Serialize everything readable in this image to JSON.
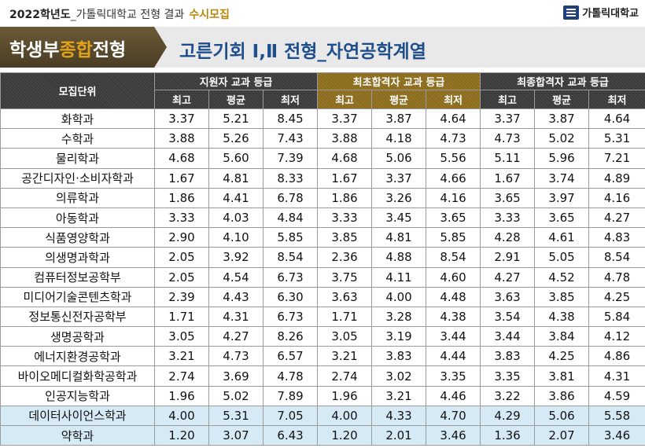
{
  "header": {
    "year": "2022학년도",
    "separator": "_",
    "description": "가톨릭대학교 전형 결과",
    "tag": "수시모집",
    "logo_text": "가톨릭대학교"
  },
  "banner": {
    "left_pre": "학생부",
    "left_highlight": "종합",
    "left_post": "전형",
    "right_title": "고른기회 Ⅰ,Ⅱ 전형_자연공학계열"
  },
  "table": {
    "col_unit": "모집단위",
    "groups": [
      "지원자 교과 등급",
      "최초합격자 교과 등급",
      "최종합격자 교과 등급"
    ],
    "sub": [
      "최고",
      "평균",
      "최저"
    ],
    "rows": [
      {
        "name": "화학과",
        "v": [
          "3.37",
          "5.21",
          "8.45",
          "3.37",
          "3.87",
          "4.64",
          "3.37",
          "3.87",
          "4.64"
        ]
      },
      {
        "name": "수학과",
        "v": [
          "3.88",
          "5.26",
          "7.43",
          "3.88",
          "4.18",
          "4.73",
          "4.73",
          "5.02",
          "5.31"
        ]
      },
      {
        "name": "물리학과",
        "v": [
          "4.68",
          "5.60",
          "7.39",
          "4.68",
          "5.06",
          "5.56",
          "5.11",
          "5.96",
          "7.21"
        ]
      },
      {
        "name": "공간디자인·소비자학과",
        "v": [
          "1.67",
          "4.81",
          "8.33",
          "1.67",
          "3.37",
          "4.66",
          "1.67",
          "3.74",
          "4.89"
        ]
      },
      {
        "name": "의류학과",
        "v": [
          "1.86",
          "4.41",
          "6.78",
          "1.86",
          "3.26",
          "4.16",
          "3.65",
          "3.97",
          "4.16"
        ]
      },
      {
        "name": "아동학과",
        "v": [
          "3.33",
          "4.03",
          "4.84",
          "3.33",
          "3.45",
          "3.65",
          "3.33",
          "3.65",
          "4.27"
        ]
      },
      {
        "name": "식품영양학과",
        "v": [
          "2.90",
          "4.10",
          "5.85",
          "3.85",
          "4.81",
          "5.85",
          "4.28",
          "4.61",
          "4.83"
        ]
      },
      {
        "name": "의생명과학과",
        "v": [
          "2.05",
          "3.92",
          "8.54",
          "2.36",
          "4.88",
          "8.54",
          "2.91",
          "5.05",
          "8.54"
        ]
      },
      {
        "name": "컴퓨터정보공학부",
        "v": [
          "2.05",
          "4.54",
          "6.73",
          "3.75",
          "4.11",
          "4.60",
          "4.27",
          "4.52",
          "4.78"
        ]
      },
      {
        "name": "미디어기술콘텐츠학과",
        "v": [
          "2.39",
          "4.43",
          "6.30",
          "3.63",
          "4.00",
          "4.48",
          "3.63",
          "3.85",
          "4.25"
        ]
      },
      {
        "name": "정보통신전자공학부",
        "v": [
          "1.71",
          "4.31",
          "6.73",
          "1.71",
          "3.28",
          "4.38",
          "3.54",
          "4.38",
          "5.84"
        ]
      },
      {
        "name": "생명공학과",
        "v": [
          "3.05",
          "4.27",
          "8.26",
          "3.05",
          "3.19",
          "3.44",
          "3.44",
          "3.84",
          "4.12"
        ]
      },
      {
        "name": "에너지환경공학과",
        "v": [
          "3.21",
          "4.73",
          "6.57",
          "3.21",
          "3.83",
          "4.44",
          "3.83",
          "4.25",
          "4.86"
        ]
      },
      {
        "name": "바이오메디컬화학공학과",
        "v": [
          "2.74",
          "3.69",
          "4.78",
          "2.74",
          "3.02",
          "3.35",
          "3.35",
          "3.81",
          "4.31"
        ]
      },
      {
        "name": "인공지능학과",
        "v": [
          "1.96",
          "5.02",
          "7.89",
          "1.96",
          "3.21",
          "4.46",
          "3.22",
          "3.86",
          "4.59"
        ]
      },
      {
        "name": "데이터사이언스학과",
        "v": [
          "4.00",
          "5.31",
          "7.05",
          "4.00",
          "4.33",
          "4.70",
          "4.29",
          "5.06",
          "5.58"
        ],
        "highlight": true
      },
      {
        "name": "약학과",
        "v": [
          "1.20",
          "3.07",
          "6.43",
          "1.20",
          "2.01",
          "3.46",
          "1.36",
          "2.07",
          "3.46"
        ],
        "highlight": true
      }
    ]
  }
}
